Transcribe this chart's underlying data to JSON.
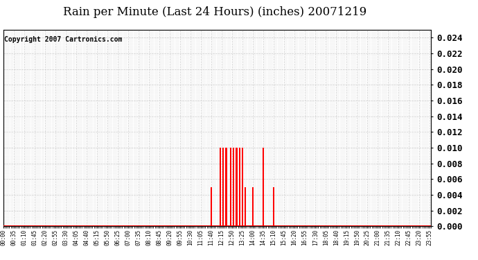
{
  "title": "Rain per Minute (Last 24 Hours) (inches) 20071219",
  "copyright_text": "Copyright 2007 Cartronics.com",
  "bg_color": "#ffffff",
  "plot_bg_color": "#ffffff",
  "bar_color": "#ff0000",
  "baseline_color": "#ff0000",
  "grid_color": "#cccccc",
  "ylim": [
    0.0,
    0.025
  ],
  "yticks": [
    0.0,
    0.002,
    0.004,
    0.006,
    0.008,
    0.01,
    0.012,
    0.014,
    0.016,
    0.018,
    0.02,
    0.022,
    0.024
  ],
  "time_labels": [
    "00:00",
    "00:35",
    "01:10",
    "01:45",
    "02:20",
    "02:55",
    "03:30",
    "04:05",
    "04:40",
    "05:15",
    "05:50",
    "06:25",
    "07:00",
    "07:35",
    "08:10",
    "08:45",
    "09:20",
    "09:55",
    "10:30",
    "11:05",
    "11:40",
    "12:15",
    "12:50",
    "13:25",
    "14:00",
    "14:35",
    "15:10",
    "15:45",
    "16:20",
    "16:55",
    "17:30",
    "18:05",
    "18:40",
    "19:15",
    "19:50",
    "20:25",
    "21:00",
    "21:35",
    "22:10",
    "22:45",
    "23:20",
    "23:55"
  ],
  "rain_events": [
    {
      "time": "11:40",
      "value": 0.005
    },
    {
      "time": "12:10",
      "value": 0.01
    },
    {
      "time": "12:20",
      "value": 0.01
    },
    {
      "time": "12:30",
      "value": 0.01
    },
    {
      "time": "12:45",
      "value": 0.01
    },
    {
      "time": "12:55",
      "value": 0.01
    },
    {
      "time": "13:05",
      "value": 0.01
    },
    {
      "time": "13:15",
      "value": 0.01
    },
    {
      "time": "13:25",
      "value": 0.01
    },
    {
      "time": "13:35",
      "value": 0.005
    },
    {
      "time": "14:00",
      "value": 0.005
    },
    {
      "time": "14:35",
      "value": 0.01
    },
    {
      "time": "15:10",
      "value": 0.005
    }
  ],
  "total_minutes": 1440,
  "title_fontsize": 12,
  "copyright_fontsize": 7,
  "ytick_fontsize": 9,
  "xtick_fontsize": 5.5
}
